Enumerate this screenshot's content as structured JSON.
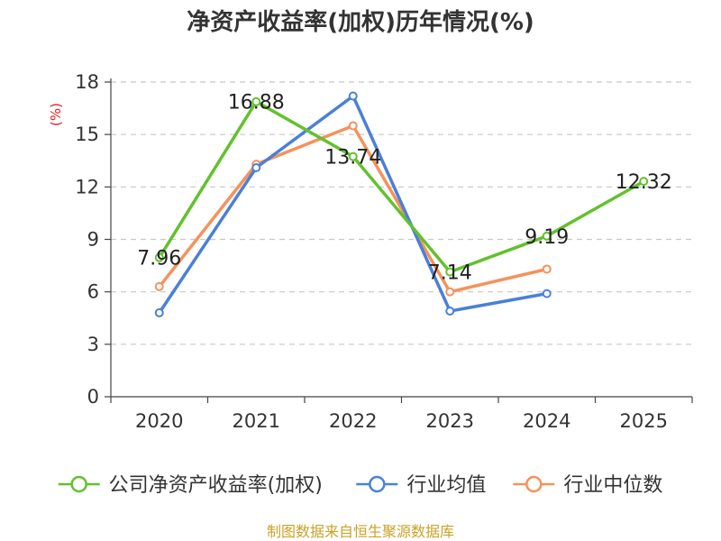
{
  "chart_data": {
    "type": "line",
    "title": "净资产收益率(加权)历年情况(%)",
    "unit_label": "(%)",
    "categories": [
      "2020",
      "2021",
      "2022",
      "2023",
      "2024",
      "2025"
    ],
    "y_ticks": [
      0,
      3,
      6,
      9,
      12,
      15,
      18
    ],
    "ylim": [
      0,
      18
    ],
    "grid": true,
    "legend_position": "bottom",
    "series": [
      {
        "name": "公司净资产收益率(加权)",
        "color": "#62c22d",
        "values": [
          7.96,
          16.88,
          13.74,
          7.14,
          9.19,
          12.32
        ],
        "labels": [
          "7.96",
          "16.88",
          "13.74",
          "7.14",
          "9.19",
          "12.32"
        ]
      },
      {
        "name": "行业均值",
        "color": "#4a80d8",
        "values": [
          4.8,
          13.1,
          17.2,
          4.9,
          5.9,
          null
        ]
      },
      {
        "name": "行业中位数",
        "color": "#f5925b",
        "values": [
          6.3,
          13.3,
          15.5,
          6.0,
          7.3,
          null
        ]
      }
    ]
  },
  "source": "制图数据来自恒生聚源数据库"
}
